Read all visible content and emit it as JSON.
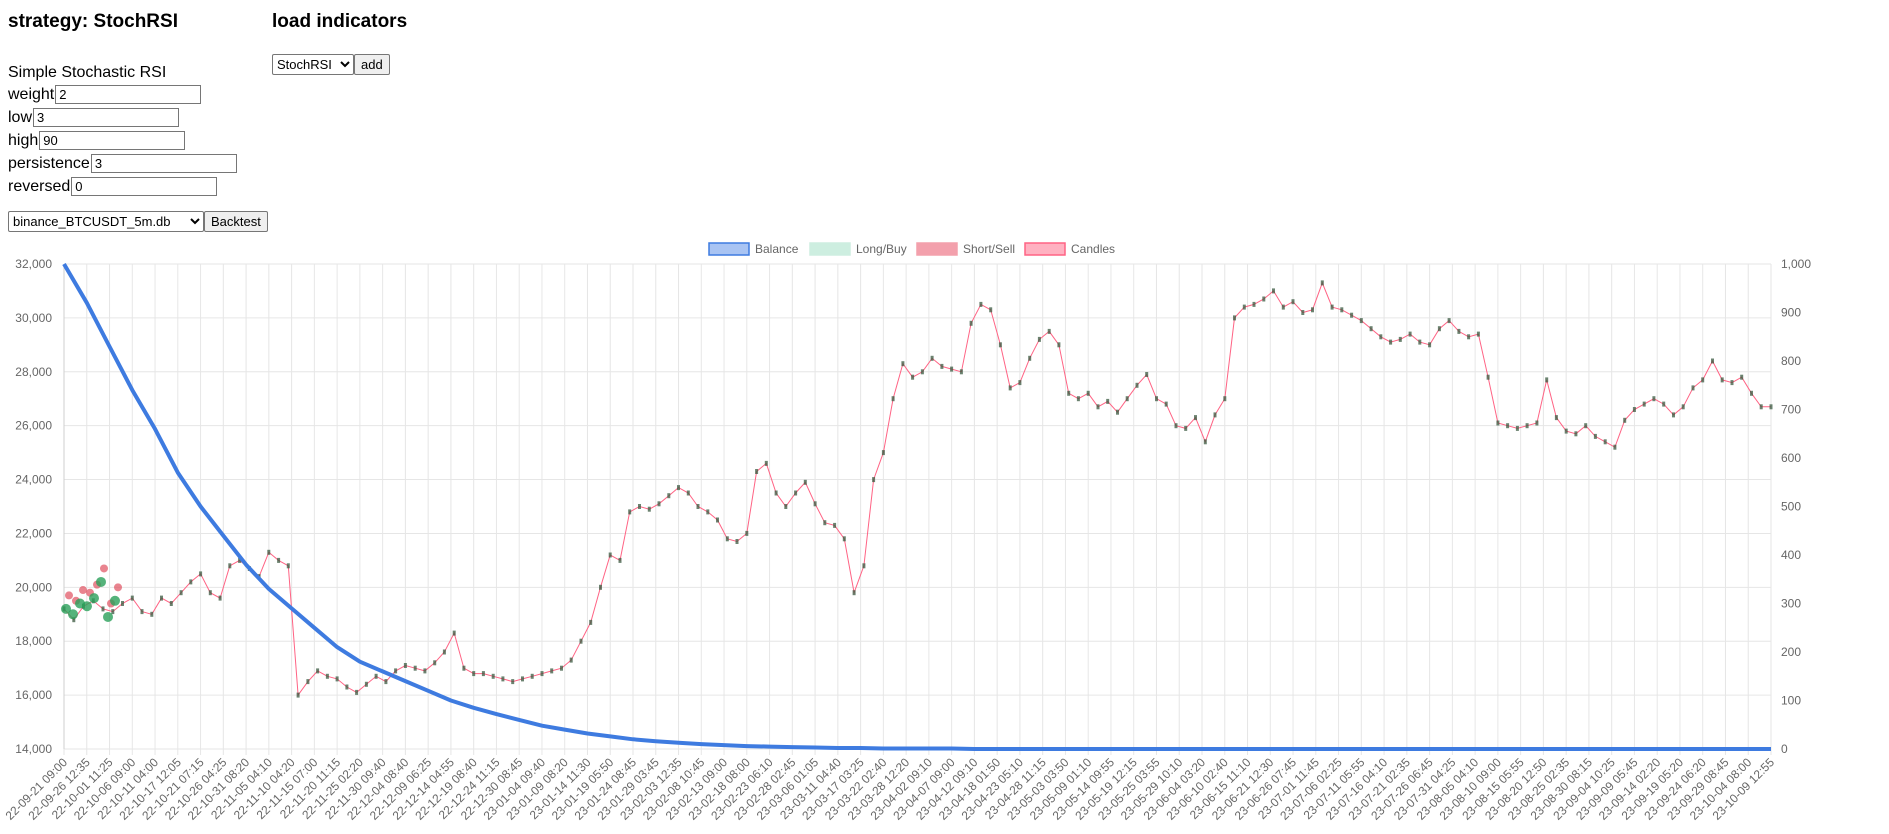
{
  "strategy_panel": {
    "title": "strategy: StochRSI",
    "description": "Simple Stochastic RSI",
    "params": [
      {
        "label": "weight",
        "value": "2"
      },
      {
        "label": "low",
        "value": "3"
      },
      {
        "label": "high",
        "value": "90"
      },
      {
        "label": "persistence",
        "value": "3"
      },
      {
        "label": "reversed",
        "value": "0"
      }
    ]
  },
  "indicators_panel": {
    "title": "load indicators",
    "select_value": "StochRSI",
    "add_label": "add"
  },
  "backtest": {
    "db_select_value": "binance_BTCUSDT_5m.db",
    "button_label": "Backtest"
  },
  "colors": {
    "balance": "#3e7be0",
    "balance_fill": "#a9c4f3",
    "long": "#2aa05a",
    "long_fill": "#cdeee0",
    "short": "#e05060",
    "short_fill": "#f3a0ac",
    "candles": "#ff6384",
    "candles_fill": "#ffb1c1",
    "grid": "#e6e6e6"
  },
  "chart_data": {
    "type": "line",
    "legend": [
      "Balance",
      "Long/Buy",
      "Short/Sell",
      "Candles"
    ],
    "legend_position": "top",
    "grid": true,
    "y_left": {
      "min": 14000,
      "max": 32000,
      "ticks": [
        "14,000",
        "16,000",
        "18,000",
        "20,000",
        "22,000",
        "24,000",
        "26,000",
        "28,000",
        "30,000",
        "32,000"
      ]
    },
    "y_right": {
      "min": 0,
      "max": 1000,
      "ticks": [
        "0",
        "100",
        "200",
        "300",
        "400",
        "500",
        "600",
        "700",
        "800",
        "900",
        "1,000"
      ]
    },
    "x_labels": [
      "22-09-21 09:00",
      "22-09-26 12:35",
      "22-10-01 11:25",
      "22-10-06 09:00",
      "22-10-11 04:00",
      "22-10-17 12:05",
      "22-10-21 07:15",
      "22-10-26 04:25",
      "22-10-31 08:20",
      "22-11-05 04:10",
      "22-11-10 04:20",
      "22-11-15 07:00",
      "22-11-20 11:15",
      "22-11-25 02:20",
      "22-11-30 09:40",
      "22-12-04 08:40",
      "22-12-09 06:25",
      "22-12-14 04:55",
      "22-12-19 08:40",
      "22-12-24 11:15",
      "22-12-30 08:45",
      "23-01-04 09:40",
      "23-01-09 08:20",
      "23-01-14 11:30",
      "23-01-19 05:50",
      "23-01-24 08:45",
      "23-01-29 03:45",
      "23-02-03 12:35",
      "23-02-08 10:45",
      "23-02-13 09:00",
      "23-02-18 08:00",
      "23-02-23 06:10",
      "23-02-28 02:45",
      "23-03-06 01:05",
      "23-03-11 04:40",
      "23-03-17 03:25",
      "23-03-22 02:40",
      "23-03-28 12:20",
      "23-04-02 09:10",
      "23-04-07 09:00",
      "23-04-12 09:10",
      "23-04-18 01:50",
      "23-04-23 05:10",
      "23-04-28 11:15",
      "23-05-03 03:50",
      "23-05-09 01:10",
      "23-05-14 09:55",
      "23-05-19 12:15",
      "23-05-25 03:55",
      "23-05-29 10:10",
      "23-06-04 03:20",
      "23-06-10 02:40",
      "23-06-15 11:10",
      "23-06-21 12:30",
      "23-06-26 07:45",
      "23-07-01 11:45",
      "23-07-06 02:25",
      "23-07-11 05:55",
      "23-07-16 04:10",
      "23-07-21 02:35",
      "23-07-26 06:45",
      "23-07-31 04:25",
      "23-08-05 04:10",
      "23-08-10 09:00",
      "23-08-15 05:55",
      "23-08-20 12:50",
      "23-08-25 02:35",
      "23-08-30 08:15",
      "23-09-04 10:25",
      "23-09-09 05:45",
      "23-09-14 02:20",
      "23-09-19 05:20",
      "23-09-24 06:20",
      "23-09-29 08:45",
      "23-10-04 08:00",
      "23-10-09 12:55"
    ],
    "price_series": {
      "name": "Candles",
      "axis": "left",
      "values": [
        19200,
        18800,
        19300,
        19500,
        19200,
        19100,
        19400,
        19600,
        19100,
        19000,
        19600,
        19400,
        19800,
        20200,
        20500,
        19800,
        19600,
        20800,
        21000,
        20700,
        20400,
        21300,
        21000,
        20800,
        16000,
        16500,
        16900,
        16700,
        16600,
        16300,
        16100,
        16400,
        16700,
        16500,
        16900,
        17100,
        17000,
        16900,
        17200,
        17600,
        18300,
        17000,
        16800,
        16800,
        16700,
        16600,
        16500,
        16600,
        16700,
        16800,
        16900,
        17000,
        17300,
        18000,
        18700,
        20000,
        21200,
        21000,
        22800,
        23000,
        22900,
        23100,
        23400,
        23700,
        23500,
        23000,
        22800,
        22500,
        21800,
        21700,
        22000,
        24300,
        24600,
        23500,
        23000,
        23500,
        23900,
        23100,
        22400,
        22300,
        21800,
        19800,
        20800,
        24000,
        25000,
        27000,
        28300,
        27800,
        28000,
        28500,
        28200,
        28100,
        28000,
        29800,
        30500,
        30300,
        29000,
        27400,
        27600,
        28500,
        29200,
        29500,
        29000,
        27200,
        27000,
        27200,
        26700,
        26900,
        26500,
        27000,
        27500,
        27900,
        27000,
        26800,
        26000,
        25900,
        26300,
        25400,
        26400,
        27000,
        30000,
        30400,
        30500,
        30700,
        31000,
        30400,
        30600,
        30200,
        30300,
        31300,
        30400,
        30300,
        30100,
        29900,
        29600,
        29300,
        29100,
        29200,
        29400,
        29100,
        29000,
        29600,
        29900,
        29500,
        29300,
        29400,
        27800,
        26100,
        26000,
        25900,
        26000,
        26100,
        27700,
        26300,
        25800,
        25700,
        26000,
        25600,
        25400,
        25200,
        26200,
        26600,
        26800,
        27000,
        26800,
        26400,
        26700,
        27400,
        27700,
        28400,
        27700,
        27600,
        27800,
        27200,
        26700,
        26700
      ],
      "long_markers": [
        19200,
        19000,
        19400,
        19300,
        19600,
        20200,
        18900,
        19500
      ]
    },
    "balance_series": {
      "name": "Balance",
      "axis": "right",
      "values": [
        1000,
        920,
        830,
        740,
        660,
        570,
        500,
        440,
        380,
        330,
        290,
        250,
        210,
        180,
        160,
        140,
        120,
        100,
        85,
        72,
        60,
        48,
        40,
        32,
        26,
        20,
        16,
        13,
        10,
        8,
        6,
        5,
        4,
        3,
        2,
        2,
        1,
        1,
        1,
        1,
        0,
        0,
        0,
        0,
        0,
        0,
        0,
        0,
        0,
        0,
        0,
        0,
        0,
        0,
        0,
        0,
        0,
        0,
        0,
        0,
        0,
        0,
        0,
        0,
        0,
        0,
        0,
        0,
        0,
        0,
        0,
        0,
        0,
        0,
        0,
        0
      ]
    }
  }
}
